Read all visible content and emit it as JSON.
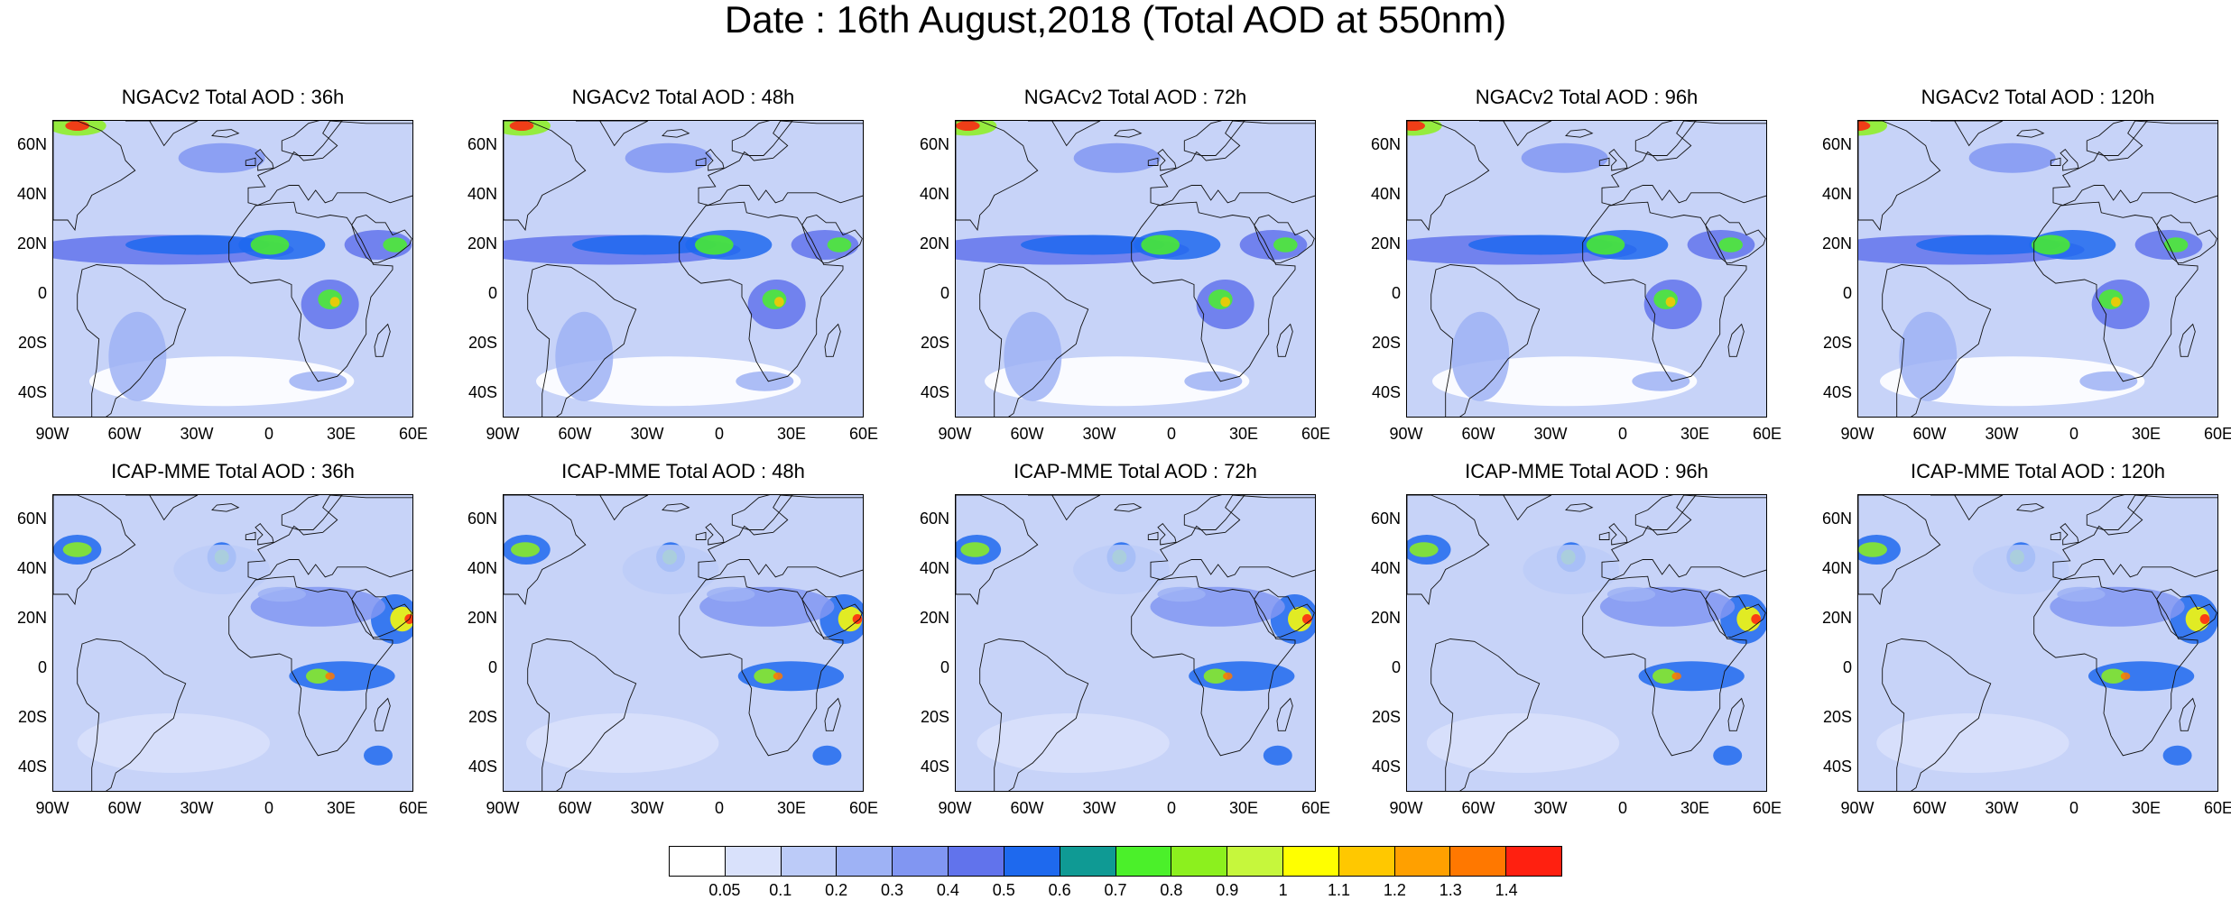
{
  "title": "Date : 16th August,2018 (Total AOD at 550nm)",
  "lat_ticks": [
    "60N",
    "40N",
    "20N",
    "0",
    "20S",
    "40S"
  ],
  "lon_ticks": [
    "90W",
    "60W",
    "30W",
    "0",
    "30E",
    "60E"
  ],
  "map_extent": {
    "lon": [
      -90,
      60
    ],
    "lat": [
      -50,
      70
    ]
  },
  "panels": [
    {
      "title": "NGACv2 Total AOD : 36h",
      "model": "NGACv2",
      "forecast_hour": 36
    },
    {
      "title": "NGACv2 Total AOD : 48h",
      "model": "NGACv2",
      "forecast_hour": 48
    },
    {
      "title": "NGACv2 Total AOD : 72h",
      "model": "NGACv2",
      "forecast_hour": 72
    },
    {
      "title": "NGACv2 Total AOD : 96h",
      "model": "NGACv2",
      "forecast_hour": 96
    },
    {
      "title": "NGACv2 Total AOD : 120h",
      "model": "NGACv2",
      "forecast_hour": 120
    },
    {
      "title": "ICAP-MME Total AOD : 36h",
      "model": "ICAP-MME",
      "forecast_hour": 36
    },
    {
      "title": "ICAP-MME Total AOD : 48h",
      "model": "ICAP-MME",
      "forecast_hour": 48
    },
    {
      "title": "ICAP-MME Total AOD : 72h",
      "model": "ICAP-MME",
      "forecast_hour": 72
    },
    {
      "title": "ICAP-MME Total AOD : 96h",
      "model": "ICAP-MME",
      "forecast_hour": 96
    },
    {
      "title": "ICAP-MME Total AOD : 120h",
      "model": "ICAP-MME",
      "forecast_hour": 120
    }
  ],
  "colorbar": {
    "levels": [
      "0.05",
      "0.1",
      "0.2",
      "0.3",
      "0.4",
      "0.5",
      "0.6",
      "0.7",
      "0.8",
      "0.9",
      "1",
      "1.1",
      "1.2",
      "1.3",
      "1.4"
    ],
    "colors": [
      "#ffffff",
      "#d9e1fb",
      "#bccbf8",
      "#9eb2f5",
      "#8196f2",
      "#6173ec",
      "#1e69ee",
      "#0f9a94",
      "#4bf02a",
      "#8cf01e",
      "#c6f73c",
      "#ffff00",
      "#ffc800",
      "#ffa000",
      "#ff7800",
      "#ff2010"
    ]
  },
  "colors": {
    "ocean_base": "#c7d3f8",
    "land_base": "#d3ddfa",
    "coastline": "#111111"
  }
}
